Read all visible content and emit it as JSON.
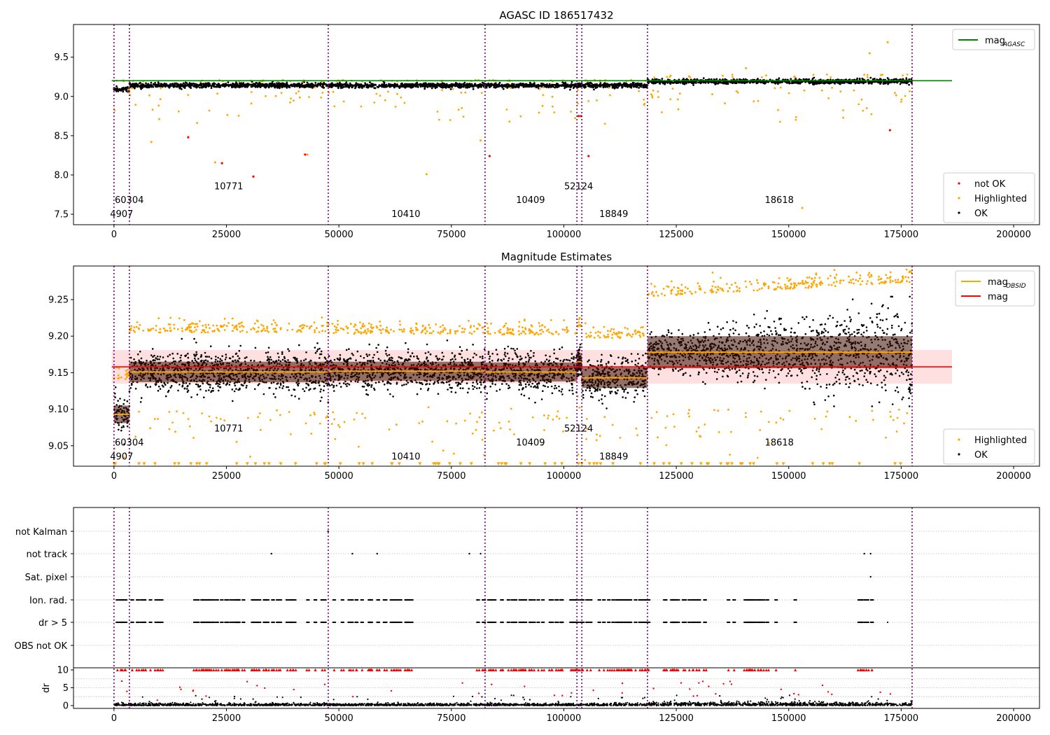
{
  "colors": {
    "ok": "#000000",
    "highlighted": "#ffa500",
    "not_ok": "#ff0000",
    "agasc": "#008000",
    "obsid_line": "#800080",
    "mag": "#ff0000",
    "mag_obsid": "#ffa500"
  },
  "chart_data": [
    {
      "id": "top",
      "type": "scatter",
      "title": "AGASC ID 186517432",
      "xlim": [
        -9000,
        205750
      ],
      "ylim": [
        7.367,
        9.916
      ],
      "xticks": [
        "0",
        "25000",
        "50000",
        "75000",
        "100000",
        "125000",
        "150000",
        "175000",
        "200000"
      ],
      "xtick_values": [
        0,
        25000,
        50000,
        75000,
        100000,
        125000,
        150000,
        175000,
        200000
      ],
      "yticks": [
        "7.5",
        "8.0",
        "8.5",
        "9.0",
        "9.5"
      ],
      "ytick_values": [
        7.5,
        8.0,
        8.5,
        9.0,
        9.5
      ],
      "mag_agasc": {
        "value": 9.2,
        "x_range": [
          -500,
          186300
        ]
      },
      "legend_lines": [
        {
          "label": "mag",
          "sub": "AGASC",
          "color": "#008000"
        }
      ],
      "legend_points": [
        {
          "label": "not OK",
          "color": "#ff0000"
        },
        {
          "label": "Highlighted",
          "color": "#ffa500"
        },
        {
          "label": "OK",
          "color": "#000000"
        }
      ],
      "not_ok_points": [
        [
          16500,
          8.48
        ],
        [
          24000,
          8.15
        ],
        [
          31000,
          7.98
        ],
        [
          42500,
          8.26
        ],
        [
          83500,
          8.24
        ],
        [
          103300,
          8.75
        ],
        [
          103800,
          8.75
        ],
        [
          105500,
          8.24
        ],
        [
          172500,
          8.57
        ]
      ],
      "obsid_label_y": [
        7.863,
        7.686,
        7.509
      ]
    },
    {
      "id": "middle",
      "type": "scatter",
      "title": "Magnitude Estimates",
      "xlim": [
        -9000,
        205750
      ],
      "ylim": [
        9.022,
        9.296
      ],
      "xticks": [
        "0",
        "25000",
        "50000",
        "75000",
        "100000",
        "125000",
        "150000",
        "175000",
        "200000"
      ],
      "xtick_values": [
        0,
        25000,
        50000,
        75000,
        100000,
        125000,
        150000,
        175000,
        200000
      ],
      "yticks": [
        "9.05",
        "9.10",
        "9.15",
        "9.20",
        "9.25"
      ],
      "ytick_values": [
        9.05,
        9.1,
        9.15,
        9.2,
        9.25
      ],
      "mag": {
        "value": 9.158,
        "band": [
          9.135,
          9.181
        ],
        "x_range": [
          -500,
          186300
        ]
      },
      "legend_lines": [
        {
          "label": "mag",
          "sub": "OBSID",
          "color": "#ffa500"
        },
        {
          "label": "mag",
          "sub": "",
          "color": "#ff0000"
        }
      ],
      "legend_points": [
        {
          "label": "Highlighted",
          "color": "#ffa500"
        },
        {
          "label": "OK",
          "color": "#000000"
        }
      ],
      "obsid_label_y": [
        9.074,
        9.055,
        9.036
      ]
    },
    {
      "id": "bottom",
      "type": "scatter",
      "xlim": [
        -9000,
        205750
      ],
      "xticks": [
        "0",
        "25000",
        "50000",
        "75000",
        "100000",
        "125000",
        "150000",
        "175000",
        "200000"
      ],
      "xtick_values": [
        0,
        25000,
        50000,
        75000,
        100000,
        125000,
        150000,
        175000,
        200000
      ],
      "flag_rows": [
        "not Kalman",
        "not track",
        "Sat. pixel",
        "Ion. rad.",
        "dr > 5",
        "OBS not OK"
      ],
      "dr": {
        "ylabel": "dr",
        "ylim": [
          -0.8,
          10.6
        ],
        "yticks": [
          "0",
          "5",
          "10"
        ],
        "ytick_values": [
          0,
          5,
          10
        ],
        "clip": 10
      },
      "flag_points": {
        "not Kalman": [
          47600
        ],
        "not track": [
          35000,
          53000,
          58500,
          79000,
          81500,
          166800,
          168200
        ],
        "Sat. pixel": [
          168200
        ],
        "OBS not OK": []
      },
      "ion_ranges": [
        [
          500,
          10500
        ],
        [
          16000,
          47000
        ],
        [
          48500,
          66000
        ],
        [
          79500,
          103000
        ],
        [
          103500,
          119000
        ],
        [
          121500,
          137000
        ],
        [
          137500,
          148000
        ],
        [
          150000,
          152500
        ],
        [
          165000,
          168500
        ]
      ],
      "dr5_extra": [
        172000
      ]
    }
  ],
  "segments": [
    {
      "obsid": "4907",
      "start": 0,
      "end": 3420,
      "mag": 9.093,
      "std": 0.012,
      "label_x": 1700,
      "label_row": 2
    },
    {
      "obsid": "60304",
      "start": 3420,
      "end": 47630,
      "mag": 9.151,
      "std": 0.014,
      "label_x": 3400,
      "label_row": 1
    },
    {
      "obsid": "10771",
      "start": 3420,
      "end": 47630,
      "mag": 9.151,
      "std": 0.014,
      "label_x": 25500,
      "label_row": 0
    },
    {
      "obsid": "10410",
      "start": 47630,
      "end": 82490,
      "mag": 9.152,
      "std": 0.013,
      "label_x": 64900,
      "label_row": 2
    },
    {
      "obsid": "10409",
      "start": 82490,
      "end": 102920,
      "mag": 9.151,
      "std": 0.013,
      "label_x": 92600,
      "label_row": 1
    },
    {
      "obsid": "52124",
      "start": 102920,
      "end": 104010,
      "mag": 9.165,
      "std": 0.012,
      "label_x": 103300,
      "label_row": 0
    },
    {
      "obsid": "18849",
      "start": 104010,
      "end": 118600,
      "mag": 9.143,
      "std": 0.014,
      "label_x": 111100,
      "label_row": 2
    },
    {
      "obsid": "18618",
      "start": 118600,
      "end": 177430,
      "mag": 9.178,
      "std": 0.022,
      "label_x": 147900,
      "label_row": 1
    }
  ],
  "obsid_boundaries": [
    0,
    3420,
    47630,
    82490,
    102920,
    104010,
    118600,
    177430
  ]
}
